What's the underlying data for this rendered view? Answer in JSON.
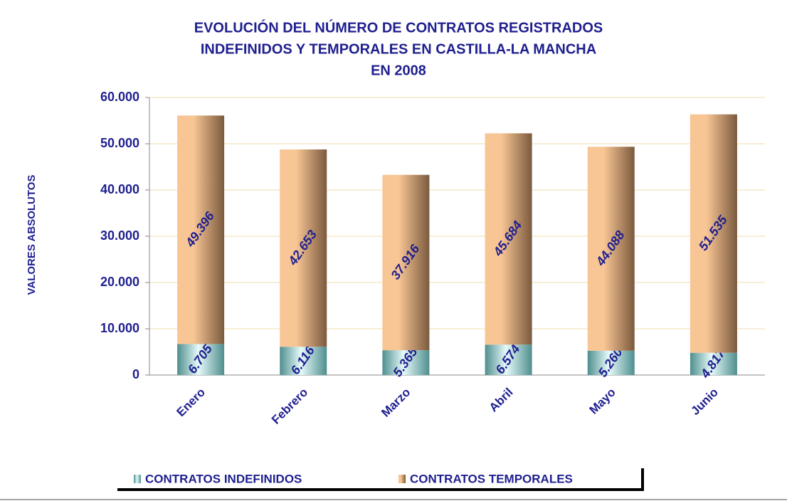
{
  "chart_data": {
    "type": "stacked_bar",
    "title": [
      "EVOLUCIÓN DEL NÚMERO DE CONTRATOS REGISTRADOS",
      "INDEFINIDOS Y TEMPORALES EN CASTILLA-LA MANCHA",
      "EN 2008"
    ],
    "y_label": "VALORES ABSOLUTOS",
    "categories": [
      "Enero",
      "Febrero",
      "Marzo",
      "Abril",
      "Mayo",
      "Junio"
    ],
    "series": [
      {
        "name": "CONTRATOS INDEFINIDOS",
        "color": "#a8dede",
        "values": [
          6705,
          6116,
          5365,
          6574,
          5260,
          4817
        ],
        "value_labels": [
          "6.705",
          "6.116",
          "5.365",
          "6.574",
          "5.260",
          "4.817"
        ]
      },
      {
        "name": "CONTRATOS TEMPORALES",
        "color": "#f8c594",
        "values": [
          49396,
          42653,
          37916,
          45684,
          44088,
          51535
        ],
        "value_labels": [
          "49.396",
          "42.653",
          "37.916",
          "45.684",
          "44.088",
          "51.535"
        ]
      }
    ],
    "ylim": [
      0,
      60000
    ],
    "yticks": [
      0,
      {
        "value": 10000,
        "label": "10.000"
      },
      {
        "value": 20000,
        "label": "20.000"
      },
      {
        "value": 30000,
        "label": "30.000"
      },
      {
        "value": 40000,
        "label": "40.000"
      },
      {
        "value": 50000,
        "label": "50.000"
      },
      {
        "value": 60000,
        "label": "60.000"
      }
    ],
    "grid": true,
    "legend": "bottom"
  }
}
